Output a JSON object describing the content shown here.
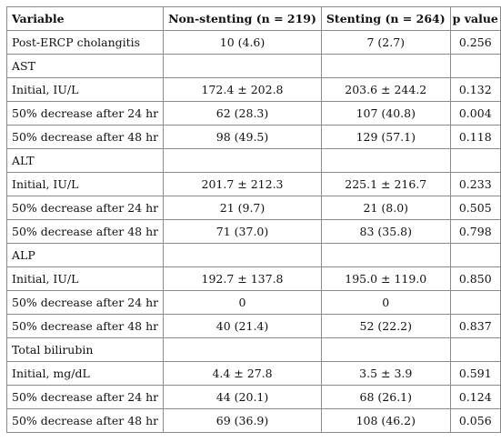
{
  "table": {
    "headers": [
      "Variable",
      "Non-stenting (n = 219)",
      "Stenting (n = 264)",
      "p value"
    ],
    "rows": [
      [
        "Post-ERCP cholangitis",
        "10 (4.6)",
        "7 (2.7)",
        "0.256"
      ],
      [
        "AST",
        "",
        "",
        ""
      ],
      [
        "Initial, IU/L",
        "172.4 ± 202.8",
        "203.6 ± 244.2",
        "0.132"
      ],
      [
        "50% decrease after 24 hr",
        "62 (28.3)",
        "107 (40.8)",
        "0.004"
      ],
      [
        "50% decrease after 48 hr",
        "98 (49.5)",
        "129 (57.1)",
        "0.118"
      ],
      [
        "ALT",
        "",
        "",
        ""
      ],
      [
        "Initial, IU/L",
        "201.7 ± 212.3",
        "225.1 ± 216.7",
        "0.233"
      ],
      [
        "50% decrease after 24 hr",
        "21 (9.7)",
        "21 (8.0)",
        "0.505"
      ],
      [
        "50% decrease after 48 hr",
        "71 (37.0)",
        "83 (35.8)",
        "0.798"
      ],
      [
        "ALP",
        "",
        "",
        ""
      ],
      [
        "Initial, IU/L",
        "192.7 ± 137.8",
        "195.0 ± 119.0",
        "0.850"
      ],
      [
        "50% decrease after 24 hr",
        "0",
        "0",
        ""
      ],
      [
        "50% decrease after 48 hr",
        "40 (21.4)",
        "52 (22.2)",
        "0.837"
      ],
      [
        "Total bilirubin",
        "",
        "",
        ""
      ],
      [
        "Initial, mg/dL",
        "4.4 ± 27.8",
        "3.5 ± 3.9",
        "0.591"
      ],
      [
        "50% decrease after 24 hr",
        "44 (20.1)",
        "68 (26.1)",
        "0.124"
      ],
      [
        "50% decrease after 48 hr",
        "69 (36.9)",
        "108 (46.2)",
        "0.056"
      ]
    ]
  }
}
